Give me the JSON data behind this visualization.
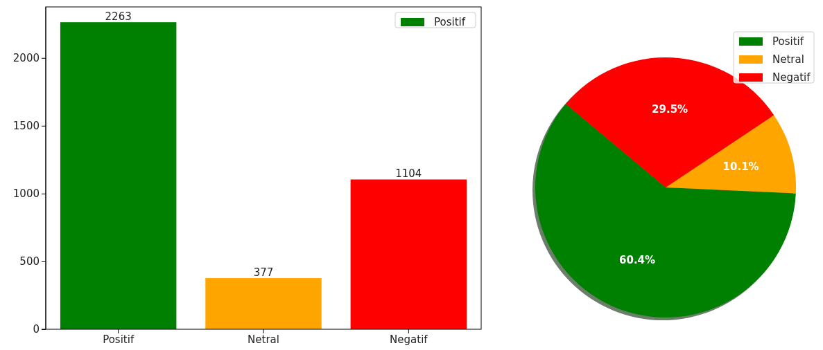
{
  "chart_data": [
    {
      "type": "bar",
      "categories": [
        "Positif",
        "Netral",
        "Negatif"
      ],
      "series": [
        {
          "name": "Positif",
          "color": "#008000",
          "colors": [
            "#008000",
            "#ffa500",
            "#ff0000"
          ],
          "values": [
            2263,
            377,
            1104
          ]
        }
      ],
      "ylim": [
        0,
        2376
      ],
      "yticks": [
        0,
        500,
        1000,
        1500,
        2000
      ],
      "data_labels": true,
      "legend": "top right"
    },
    {
      "type": "pie",
      "categories": [
        "Positif",
        "Netral",
        "Negatif"
      ],
      "values": [
        60.4,
        10.1,
        29.5
      ],
      "colors": [
        "#008000",
        "#ffa500",
        "#ff0000"
      ],
      "value_labels": [
        "60.4%",
        "10.1%",
        "29.5%"
      ],
      "legend": "top right"
    }
  ]
}
